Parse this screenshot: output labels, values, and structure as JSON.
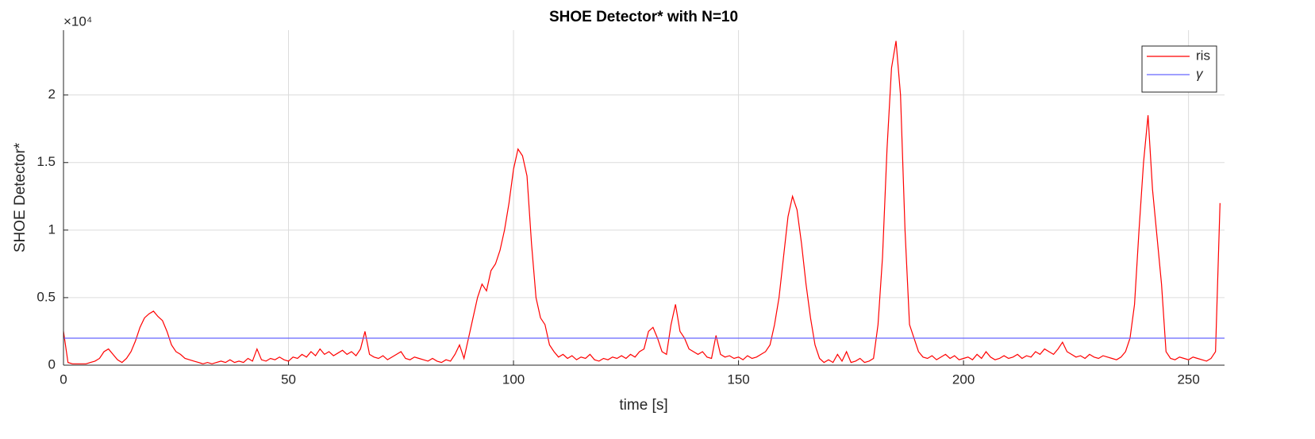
{
  "chart_data": {
    "type": "line",
    "title": "SHOE Detector* with N=10",
    "xlabel": "time [s]",
    "ylabel": "SHOE Detector*",
    "y_multiplier": "×10⁴",
    "xlim": [
      0,
      258
    ],
    "ylim": [
      0,
      2.48
    ],
    "xticks": [
      0,
      50,
      100,
      150,
      200,
      250
    ],
    "yticks": [
      0,
      0.5,
      1,
      1.5,
      2
    ],
    "grid": true,
    "legend": "northeast",
    "series": [
      {
        "name": "ris",
        "color": "#ff0000",
        "x": [
          0,
          1,
          2,
          3,
          4,
          5,
          6,
          7,
          8,
          9,
          10,
          11,
          12,
          13,
          14,
          15,
          16,
          17,
          18,
          19,
          20,
          21,
          22,
          23,
          24,
          25,
          26,
          27,
          28,
          29,
          30,
          31,
          32,
          33,
          34,
          35,
          36,
          37,
          38,
          39,
          40,
          41,
          42,
          43,
          44,
          45,
          46,
          47,
          48,
          49,
          50,
          51,
          52,
          53,
          54,
          55,
          56,
          57,
          58,
          59,
          60,
          61,
          62,
          63,
          64,
          65,
          66,
          67,
          68,
          69,
          70,
          71,
          72,
          73,
          74,
          75,
          76,
          77,
          78,
          79,
          80,
          81,
          82,
          83,
          84,
          85,
          86,
          87,
          88,
          89,
          90,
          91,
          92,
          93,
          94,
          95,
          96,
          97,
          98,
          99,
          100,
          101,
          102,
          103,
          104,
          105,
          106,
          107,
          108,
          109,
          110,
          111,
          112,
          113,
          114,
          115,
          116,
          117,
          118,
          119,
          120,
          121,
          122,
          123,
          124,
          125,
          126,
          127,
          128,
          129,
          130,
          131,
          132,
          133,
          134,
          135,
          136,
          137,
          138,
          139,
          140,
          141,
          142,
          143,
          144,
          145,
          146,
          147,
          148,
          149,
          150,
          151,
          152,
          153,
          154,
          155,
          156,
          157,
          158,
          159,
          160,
          161,
          162,
          163,
          164,
          165,
          166,
          167,
          168,
          169,
          170,
          171,
          172,
          173,
          174,
          175,
          176,
          177,
          178,
          179,
          180,
          181,
          182,
          183,
          184,
          185,
          186,
          187,
          188,
          189,
          190,
          191,
          192,
          193,
          194,
          195,
          196,
          197,
          198,
          199,
          200,
          201,
          202,
          203,
          204,
          205,
          206,
          207,
          208,
          209,
          210,
          211,
          212,
          213,
          214,
          215,
          216,
          217,
          218,
          219,
          220,
          221,
          222,
          223,
          224,
          225,
          226,
          227,
          228,
          229,
          230,
          231,
          232,
          233,
          234,
          235,
          236,
          237,
          238,
          239,
          240,
          241,
          242,
          243,
          244,
          245,
          246,
          247,
          248,
          249,
          250,
          251,
          252,
          253,
          254,
          255,
          256,
          257
        ],
        "values": [
          0.25,
          0.02,
          0.01,
          0.01,
          0.01,
          0.01,
          0.02,
          0.03,
          0.05,
          0.1,
          0.12,
          0.08,
          0.04,
          0.02,
          0.05,
          0.1,
          0.18,
          0.28,
          0.35,
          0.38,
          0.4,
          0.36,
          0.33,
          0.25,
          0.15,
          0.1,
          0.08,
          0.05,
          0.04,
          0.03,
          0.02,
          0.01,
          0.02,
          0.01,
          0.02,
          0.03,
          0.02,
          0.04,
          0.02,
          0.03,
          0.02,
          0.05,
          0.03,
          0.12,
          0.04,
          0.03,
          0.05,
          0.04,
          0.06,
          0.04,
          0.03,
          0.06,
          0.05,
          0.08,
          0.06,
          0.1,
          0.07,
          0.12,
          0.08,
          0.1,
          0.07,
          0.09,
          0.11,
          0.08,
          0.1,
          0.07,
          0.12,
          0.25,
          0.08,
          0.06,
          0.05,
          0.07,
          0.04,
          0.06,
          0.08,
          0.1,
          0.05,
          0.04,
          0.06,
          0.05,
          0.04,
          0.03,
          0.05,
          0.03,
          0.02,
          0.04,
          0.03,
          0.08,
          0.15,
          0.05,
          0.2,
          0.35,
          0.5,
          0.6,
          0.55,
          0.7,
          0.75,
          0.85,
          1.0,
          1.2,
          1.45,
          1.6,
          1.55,
          1.4,
          0.9,
          0.5,
          0.35,
          0.3,
          0.15,
          0.1,
          0.06,
          0.08,
          0.05,
          0.07,
          0.04,
          0.06,
          0.05,
          0.08,
          0.04,
          0.03,
          0.05,
          0.04,
          0.06,
          0.05,
          0.07,
          0.05,
          0.08,
          0.06,
          0.1,
          0.12,
          0.25,
          0.28,
          0.2,
          0.1,
          0.08,
          0.3,
          0.45,
          0.25,
          0.2,
          0.12,
          0.1,
          0.08,
          0.1,
          0.06,
          0.05,
          0.22,
          0.08,
          0.06,
          0.07,
          0.05,
          0.06,
          0.04,
          0.07,
          0.05,
          0.06,
          0.08,
          0.1,
          0.15,
          0.3,
          0.5,
          0.8,
          1.1,
          1.25,
          1.15,
          0.9,
          0.6,
          0.35,
          0.15,
          0.05,
          0.02,
          0.04,
          0.02,
          0.08,
          0.03,
          0.1,
          0.02,
          0.03,
          0.05,
          0.02,
          0.03,
          0.05,
          0.3,
          0.8,
          1.6,
          2.2,
          2.4,
          2.0,
          1.0,
          0.3,
          0.2,
          0.1,
          0.06,
          0.05,
          0.07,
          0.04,
          0.06,
          0.08,
          0.05,
          0.07,
          0.04,
          0.05,
          0.06,
          0.04,
          0.08,
          0.05,
          0.1,
          0.06,
          0.04,
          0.05,
          0.07,
          0.05,
          0.06,
          0.08,
          0.05,
          0.07,
          0.06,
          0.1,
          0.08,
          0.12,
          0.1,
          0.08,
          0.12,
          0.17,
          0.1,
          0.08,
          0.06,
          0.07,
          0.05,
          0.08,
          0.06,
          0.05,
          0.07,
          0.06,
          0.05,
          0.04,
          0.06,
          0.1,
          0.2,
          0.45,
          1.0,
          1.5,
          1.85,
          1.3,
          0.95,
          0.6,
          0.1,
          0.05,
          0.04,
          0.06,
          0.05,
          0.04,
          0.06,
          0.05,
          0.04,
          0.03,
          0.05,
          0.1,
          1.2
        ]
      },
      {
        "name": "γ",
        "color": "#6666ff",
        "x": [
          0,
          258
        ],
        "values": [
          0.2,
          0.2
        ]
      }
    ]
  }
}
